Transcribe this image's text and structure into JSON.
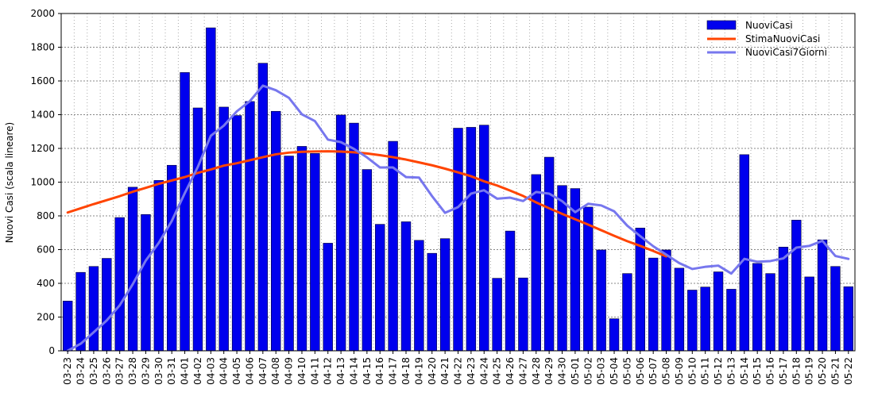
{
  "chart_data": {
    "type": "bar",
    "title": "",
    "xlabel": "",
    "ylabel": "Nuovi Casi (scala lineare)",
    "ylim": [
      0,
      2000
    ],
    "yticks": [
      0,
      200,
      400,
      600,
      800,
      1000,
      1200,
      1400,
      1600,
      1800,
      2000
    ],
    "grid": true,
    "legend_position": "top-right",
    "categories": [
      "03-23",
      "03-24",
      "03-25",
      "03-26",
      "03-27",
      "03-28",
      "03-29",
      "03-30",
      "03-31",
      "04-01",
      "04-02",
      "04-03",
      "04-04",
      "04-05",
      "04-06",
      "04-07",
      "04-08",
      "04-09",
      "04-10",
      "04-11",
      "04-12",
      "04-13",
      "04-14",
      "04-15",
      "04-16",
      "04-17",
      "04-18",
      "04-19",
      "04-20",
      "04-21",
      "04-22",
      "04-23",
      "04-24",
      "04-25",
      "04-26",
      "04-27",
      "04-28",
      "04-29",
      "04-30",
      "05-01",
      "05-02",
      "05-03",
      "05-04",
      "05-05",
      "05-06",
      "05-07",
      "05-08",
      "05-09",
      "05-10",
      "05-11",
      "05-12",
      "05-13",
      "05-14",
      "05-15",
      "05-16",
      "05-17",
      "05-18",
      "05-19",
      "05-20",
      "05-21",
      "05-22"
    ],
    "series": [
      {
        "name": "NuoviCasi",
        "kind": "bar",
        "color": "#0000ee",
        "values": [
          295,
          465,
          500,
          548,
          790,
          970,
          808,
          1010,
          1100,
          1650,
          1440,
          1915,
          1445,
          1395,
          1478,
          1705,
          1420,
          1155,
          1212,
          1170,
          638,
          1398,
          1350,
          1075,
          750,
          1242,
          765,
          655,
          578,
          665,
          1320,
          1325,
          1338,
          430,
          710,
          432,
          1045,
          1148,
          980,
          962,
          852,
          598,
          190,
          458,
          728,
          550,
          598,
          490,
          360,
          378,
          468,
          365,
          1163,
          518,
          458,
          615,
          775,
          438,
          658,
          500,
          380
        ]
      },
      {
        "name": "StimaNuoviCasi",
        "kind": "line",
        "color": "#ff4400",
        "values": [
          820,
          845,
          870,
          893,
          917,
          943,
          966,
          990,
          1010,
          1030,
          1055,
          1075,
          1098,
          1112,
          1130,
          1148,
          1165,
          1175,
          1180,
          1182,
          1183,
          1181,
          1177,
          1170,
          1160,
          1148,
          1134,
          1117,
          1100,
          1080,
          1058,
          1035,
          1005,
          980,
          950,
          918,
          880,
          845,
          812,
          780,
          748,
          715,
          682,
          650,
          622,
          592,
          560,
          null,
          null,
          null,
          null,
          null,
          null,
          null,
          null,
          null,
          null,
          null,
          null,
          null,
          null
        ]
      },
      {
        "name": "NuoviCasi7Giorni",
        "kind": "line",
        "color": "#7777ee",
        "values": [
          0,
          42,
          110,
          180,
          270,
          395,
          535,
          640,
          770,
          935,
          1090,
          1275,
          1335,
          1420,
          1480,
          1572,
          1545,
          1500,
          1402,
          1362,
          1252,
          1237,
          1197,
          1147,
          1087,
          1087,
          1030,
          1027,
          917,
          818,
          852,
          932,
          952,
          902,
          908,
          888,
          942,
          932,
          887,
          822,
          872,
          862,
          827,
          742,
          680,
          620,
          570,
          520,
          485,
          498,
          505,
          458,
          545,
          528,
          532,
          548,
          612,
          622,
          652,
          562,
          545
        ]
      }
    ]
  }
}
